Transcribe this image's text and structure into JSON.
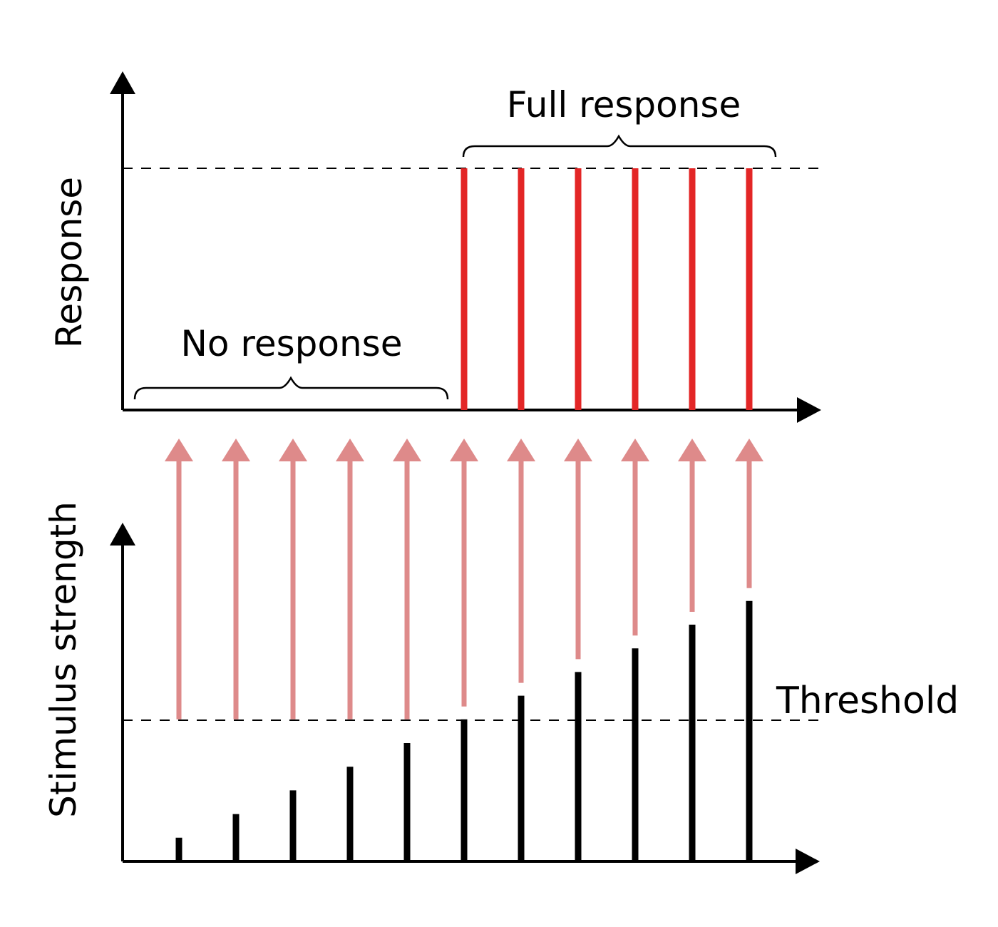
{
  "labels": {
    "response_axis": "Response",
    "stimulus_axis": "Stimulus strength",
    "no_response": "No response",
    "full_response": "Full response",
    "threshold": "Threshold"
  },
  "chart_data": [
    {
      "type": "bar",
      "ylabel": "Response",
      "series": [
        {
          "values": [
            0,
            0,
            0,
            0,
            0,
            1,
            1,
            1,
            1,
            1,
            1
          ]
        }
      ],
      "ylim": [
        0,
        1
      ],
      "annotations": [
        "No response",
        "Full response"
      ]
    },
    {
      "type": "bar",
      "ylabel": "Stimulus strength",
      "series": [
        {
          "values": [
            1,
            2,
            3,
            4,
            5,
            6,
            7,
            8,
            9,
            10,
            11
          ]
        }
      ],
      "threshold": 6,
      "annotations": [
        "Threshold"
      ]
    }
  ],
  "colors": {
    "response_bar": "#e32626",
    "stimulus_bar": "#000000",
    "arrow": "#de8a8a",
    "axis": "#000000"
  }
}
